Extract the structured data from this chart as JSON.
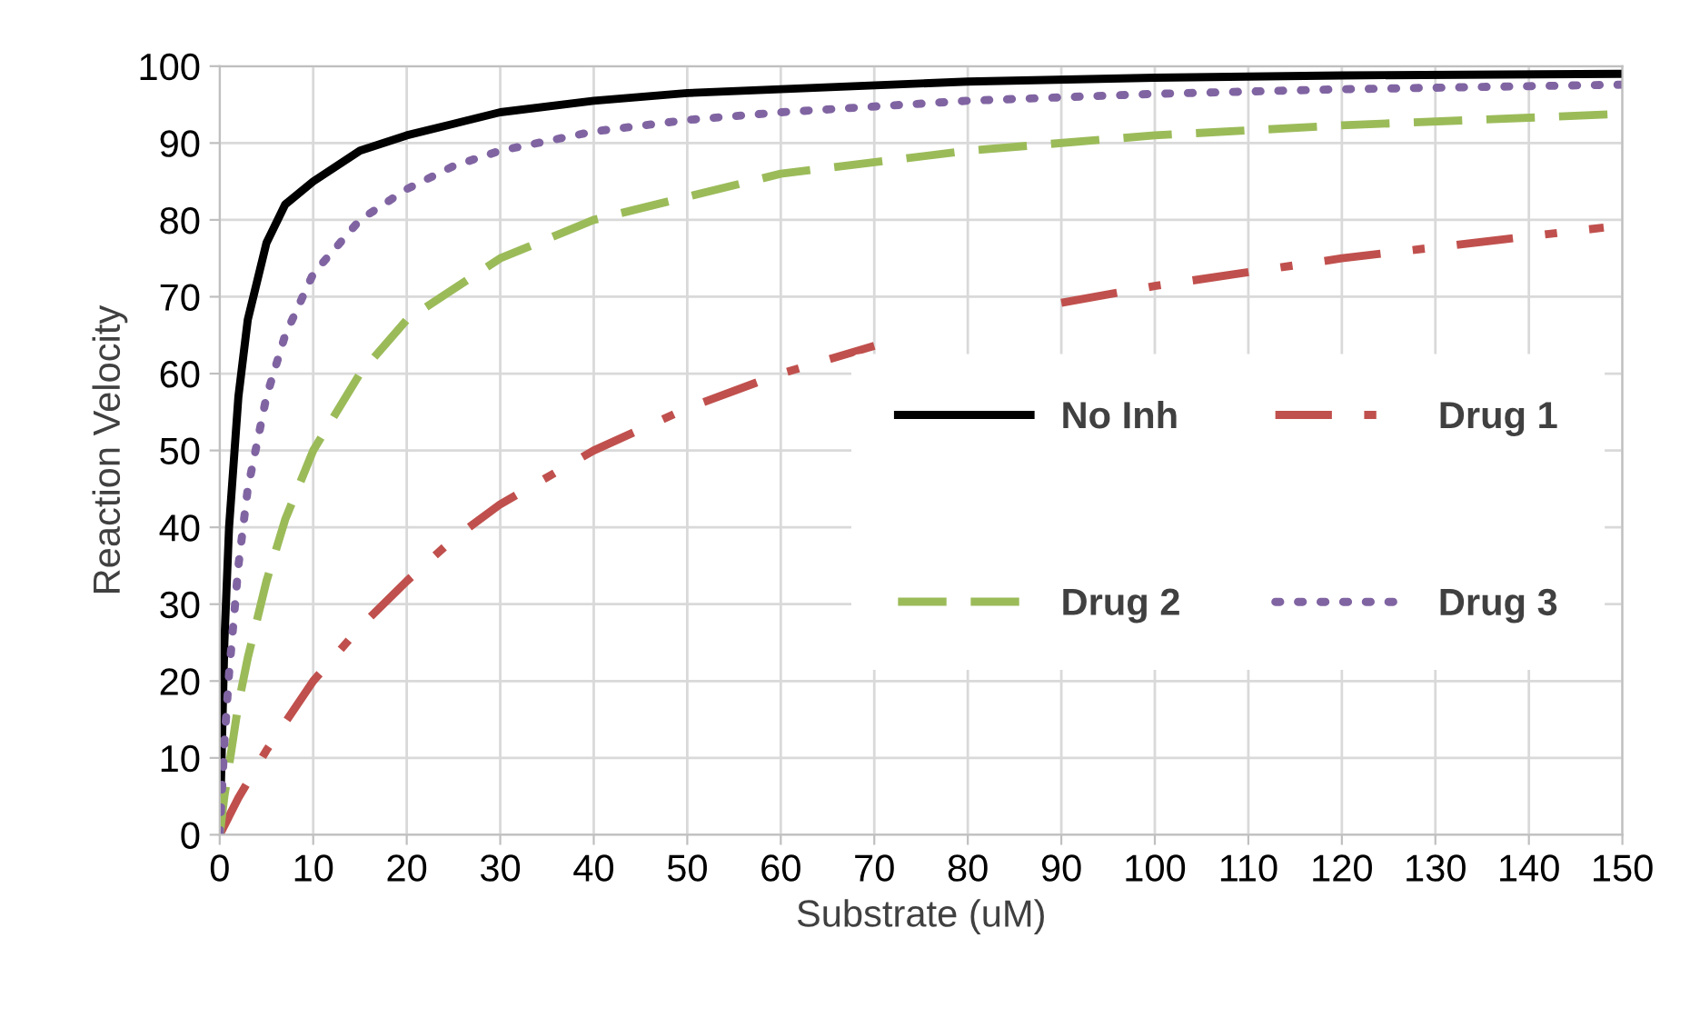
{
  "chart_data": {
    "type": "line",
    "xlabel": "Substrate (uM)",
    "ylabel": "Reaction Velocity",
    "xlim": [
      0,
      150
    ],
    "ylim": [
      0,
      100
    ],
    "xticks": [
      0,
      10,
      20,
      30,
      40,
      50,
      60,
      70,
      80,
      90,
      100,
      110,
      120,
      130,
      140,
      150
    ],
    "yticks": [
      0,
      10,
      20,
      30,
      40,
      50,
      60,
      70,
      80,
      90,
      100
    ],
    "grid": true,
    "legend": "right",
    "marker": "none",
    "series": [
      {
        "name": "No Inh",
        "color": "#000000",
        "line_style": "solid",
        "x": [
          0,
          0.5,
          1,
          2,
          3,
          5,
          7,
          10,
          15,
          20,
          25,
          30,
          40,
          50,
          60,
          80,
          100,
          120,
          150
        ],
        "values": [
          0,
          25,
          40,
          57,
          67,
          77,
          82,
          85,
          89,
          91,
          92.5,
          94,
          95.5,
          96.5,
          97,
          98,
          98.5,
          98.8,
          99
        ]
      },
      {
        "name": "Drug 1",
        "color": "#c0504d",
        "line_style": "dashdot",
        "x": [
          0,
          1,
          2,
          5,
          10,
          15,
          20,
          25,
          30,
          40,
          50,
          60,
          70,
          80,
          90,
          100,
          120,
          148
        ],
        "values": [
          0,
          2.4,
          4.8,
          11,
          20,
          27,
          33,
          38.5,
          43,
          50,
          55.5,
          60,
          63.6,
          null,
          69.2,
          71.4,
          75,
          79
        ]
      },
      {
        "name": "Drug 2",
        "color": "#9bbb59",
        "line_style": "dashed",
        "x": [
          0,
          0.5,
          1,
          2,
          3,
          5,
          7,
          10,
          15,
          20,
          25,
          30,
          40,
          50,
          60,
          80,
          100,
          120,
          150
        ],
        "values": [
          0,
          5,
          9,
          17,
          23,
          33,
          41,
          50,
          60,
          67,
          71,
          75,
          80,
          83,
          86,
          89,
          91,
          92.3,
          93.8
        ]
      },
      {
        "name": "Drug 3",
        "color": "#8064a2",
        "line_style": "dotted",
        "x": [
          0,
          0.5,
          1,
          2,
          3,
          5,
          7,
          10,
          15,
          20,
          25,
          30,
          40,
          50,
          60,
          80,
          100,
          120,
          150
        ],
        "values": [
          0,
          12,
          21,
          35,
          45,
          57,
          65,
          73,
          80,
          84,
          87,
          89,
          91.5,
          93,
          94,
          95.5,
          96.4,
          97,
          97.6
        ]
      }
    ]
  }
}
